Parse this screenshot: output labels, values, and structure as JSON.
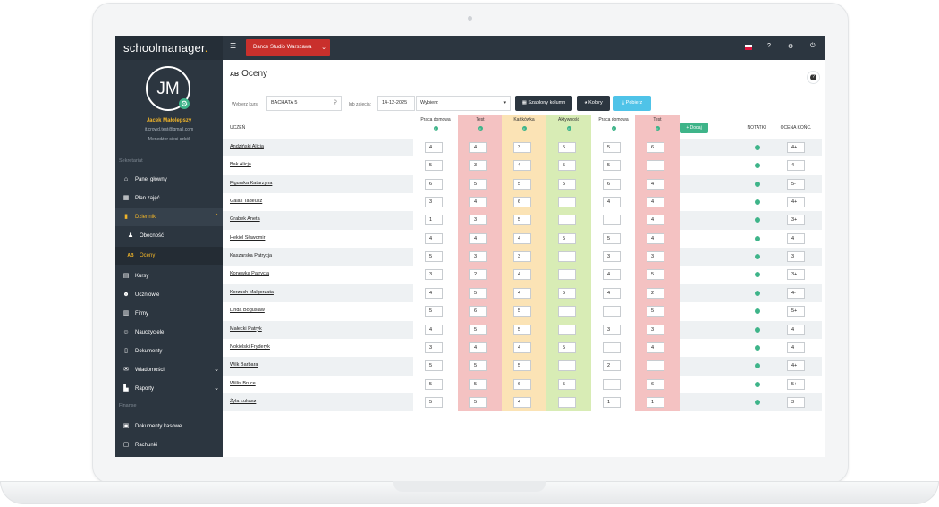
{
  "app": {
    "logo": "schoolmanager",
    "logo_dot": "."
  },
  "user": {
    "initials": "JM",
    "name": "Jacek Małolepszy",
    "email": "it.crowd.test@gmail.com",
    "role": "Menedżer sieci szkół"
  },
  "sidebar": {
    "section_secretariat": "Sekretariat",
    "section_finance": "Finanse",
    "items": [
      {
        "label": "Panel główny",
        "icon": "home-icon"
      },
      {
        "label": "Plan zajęć",
        "icon": "calendar-icon"
      },
      {
        "label": "Dziennik",
        "icon": "book-icon"
      },
      {
        "label": "Obecność",
        "icon": "user-check-icon"
      },
      {
        "label": "Oceny",
        "icon": "grades-icon"
      },
      {
        "label": "Kursy",
        "icon": "course-icon"
      },
      {
        "label": "Uczniowie",
        "icon": "students-icon"
      },
      {
        "label": "Firmy",
        "icon": "building-icon"
      },
      {
        "label": "Nauczyciele",
        "icon": "teacher-icon"
      },
      {
        "label": "Dokumenty",
        "icon": "document-icon"
      },
      {
        "label": "Wiadomości",
        "icon": "message-icon"
      },
      {
        "label": "Raporty",
        "icon": "chart-icon"
      },
      {
        "label": "Dokumenty kasowe",
        "icon": "cash-document-icon"
      },
      {
        "label": "Rachunki",
        "icon": "receipt-icon"
      }
    ]
  },
  "topbar": {
    "school": "Dance Studio Warszawa"
  },
  "page": {
    "title": "Oceny",
    "title_icon": "AB"
  },
  "filters": {
    "course_label": "Wybierz kurs:",
    "course_value": "BACHATA 5",
    "or_label": "lub zajęcia:",
    "date_value": "14-12-2025",
    "select_value": "Wybierz",
    "templates_btn": "Szablony kolumn",
    "colors_btn": "Kolory",
    "download_btn": "Pobierz"
  },
  "table": {
    "student_header": "UCZEŃ",
    "columns": [
      {
        "label": "Praca domowa",
        "color": "#ffffff"
      },
      {
        "label": "Test",
        "color": "#f4c2c2"
      },
      {
        "label": "Kartkówka",
        "color": "#fbe3b5"
      },
      {
        "label": "Aktywność",
        "color": "#d8ecb5"
      },
      {
        "label": "Praca domowa",
        "color": "#ffffff"
      },
      {
        "label": "Test",
        "color": "#f4c2c2"
      }
    ],
    "add_btn": "+ Dodaj",
    "notes_header": "NOTATKI",
    "final_header": "OCENA KOŃC.",
    "rows": [
      {
        "name": "Andziński Alicja",
        "grades": [
          "4",
          "4",
          "3",
          "5",
          "5",
          "6"
        ],
        "final": "4+"
      },
      {
        "name": "Bak Alicja",
        "grades": [
          "5",
          "3",
          "4",
          "5",
          "5",
          ""
        ],
        "final": "4-"
      },
      {
        "name": "Figurska Katarzyna",
        "grades": [
          "6",
          "5",
          "5",
          "5",
          "6",
          "4"
        ],
        "final": "5-"
      },
      {
        "name": "Galas Tadeusz",
        "grades": [
          "3",
          "4",
          "6",
          "",
          "4",
          "4"
        ],
        "final": "4+"
      },
      {
        "name": "Grabek Aneta",
        "grades": [
          "1",
          "3",
          "5",
          "",
          "",
          "4"
        ],
        "final": "3+"
      },
      {
        "name": "Hekiel Sławomir",
        "grades": [
          "4",
          "4",
          "4",
          "5",
          "5",
          "4"
        ],
        "final": "4"
      },
      {
        "name": "Kaszarska Patrycja",
        "grades": [
          "5",
          "3",
          "3",
          "",
          "3",
          "3"
        ],
        "final": "3"
      },
      {
        "name": "Konewka Patrycja",
        "grades": [
          "3",
          "2",
          "4",
          "",
          "4",
          "5"
        ],
        "final": "3+"
      },
      {
        "name": "Korzuch Małgorzata",
        "grades": [
          "4",
          "5",
          "4",
          "5",
          "4",
          "2"
        ],
        "final": "4-"
      },
      {
        "name": "Linda Bogusław",
        "grades": [
          "5",
          "6",
          "5",
          "",
          "",
          "5"
        ],
        "final": "5+"
      },
      {
        "name": "Małecki Patryk",
        "grades": [
          "4",
          "5",
          "5",
          "",
          "3",
          "3"
        ],
        "final": "4"
      },
      {
        "name": "Nokielski Fryderyk",
        "grades": [
          "3",
          "4",
          "4",
          "5",
          "",
          "4"
        ],
        "final": "4"
      },
      {
        "name": "Wilk Barbara",
        "grades": [
          "5",
          "5",
          "5",
          "",
          "2",
          ""
        ],
        "final": "4+"
      },
      {
        "name": "Willis Bruce",
        "grades": [
          "5",
          "5",
          "6",
          "5",
          "",
          "6"
        ],
        "final": "5+"
      },
      {
        "name": "Żyła Łukasz",
        "grades": [
          "5",
          "5",
          "4",
          "",
          "1",
          "1"
        ],
        "final": "3"
      }
    ]
  }
}
